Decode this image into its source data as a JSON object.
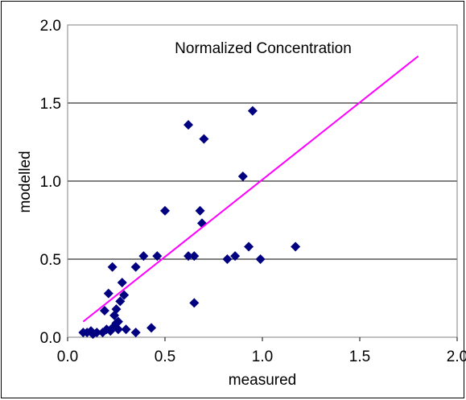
{
  "chart_data": {
    "type": "scatter",
    "title": "Normalized Concentration",
    "xlabel": "measured",
    "ylabel": "modelled",
    "xlim": [
      0,
      2
    ],
    "ylim": [
      0,
      2
    ],
    "xticks": [
      "0.0",
      "0.5",
      "1.0",
      "1.5",
      "2.0"
    ],
    "yticks": [
      "0.0",
      "0.5",
      "1.0",
      "1.5",
      "2.0"
    ],
    "grid": "horizontal",
    "marker_color": "#000080",
    "line_color": "#ff00ff",
    "points": [
      [
        0.08,
        0.03
      ],
      [
        0.1,
        0.03
      ],
      [
        0.12,
        0.04
      ],
      [
        0.13,
        0.02
      ],
      [
        0.15,
        0.03
      ],
      [
        0.18,
        0.03
      ],
      [
        0.19,
        0.17
      ],
      [
        0.2,
        0.05
      ],
      [
        0.21,
        0.28
      ],
      [
        0.22,
        0.04
      ],
      [
        0.23,
        0.45
      ],
      [
        0.23,
        0.06
      ],
      [
        0.24,
        0.14
      ],
      [
        0.25,
        0.09
      ],
      [
        0.25,
        0.18
      ],
      [
        0.26,
        0.1
      ],
      [
        0.26,
        0.05
      ],
      [
        0.27,
        0.23
      ],
      [
        0.28,
        0.35
      ],
      [
        0.29,
        0.27
      ],
      [
        0.3,
        0.05
      ],
      [
        0.35,
        0.03
      ],
      [
        0.35,
        0.45
      ],
      [
        0.39,
        0.52
      ],
      [
        0.43,
        0.06
      ],
      [
        0.46,
        0.52
      ],
      [
        0.5,
        0.81
      ],
      [
        0.62,
        1.36
      ],
      [
        0.62,
        0.52
      ],
      [
        0.65,
        0.52
      ],
      [
        0.65,
        0.22
      ],
      [
        0.68,
        0.81
      ],
      [
        0.69,
        0.73
      ],
      [
        0.7,
        1.27
      ],
      [
        0.82,
        0.5
      ],
      [
        0.86,
        0.52
      ],
      [
        0.9,
        1.03
      ],
      [
        0.93,
        0.58
      ],
      [
        0.95,
        1.45
      ],
      [
        0.99,
        0.5
      ],
      [
        1.17,
        0.58
      ]
    ],
    "fit_line": {
      "x": [
        0.08,
        1.8
      ],
      "y": [
        0.1,
        1.8
      ]
    }
  }
}
